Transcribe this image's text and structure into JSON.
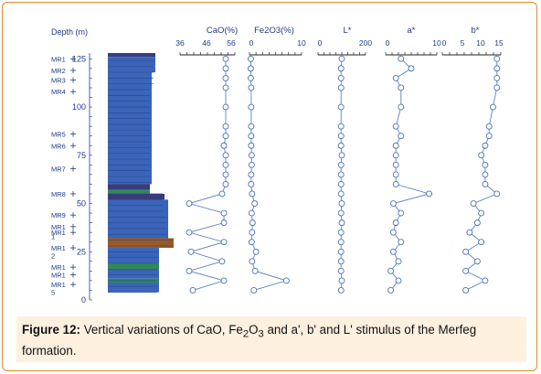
{
  "caption": {
    "label": "Figure 12:",
    "pre": " Vertical variations of CaO, Fe",
    "sub1": "2",
    "mid1": "O",
    "sub2": "3",
    "post": " and a', b' and L' stimulus of the Merfeg formation."
  },
  "column": {
    "depth_label": "Depth (m)",
    "depth_ticks": [
      "125",
      "100",
      "75",
      "50",
      "25",
      "0"
    ],
    "samples": [
      "MR1",
      "MR2",
      "MR3",
      "MR4",
      "MR5",
      "MR6",
      "MR7",
      "MR8",
      "MR9",
      "MR1",
      "MR1",
      "1",
      "MR1",
      "2",
      "MR1",
      "MR1",
      "MR1",
      "5"
    ],
    "colors": {
      "blue": "#3b64b8",
      "brown": "#9c5a1f",
      "green": "#2e8b57",
      "dark": "#3a3a7a"
    }
  },
  "chart_data": [
    {
      "type": "line",
      "title": "CaO(%)",
      "ticks": [
        "36",
        "46",
        "56"
      ],
      "xlim": [
        31,
        61
      ],
      "depth": [
        125,
        120,
        115,
        110,
        100,
        90,
        85,
        80,
        75,
        70,
        65,
        60,
        55,
        50,
        45,
        40,
        35,
        30,
        25,
        20,
        15,
        10,
        5
      ],
      "values": [
        56,
        56,
        56,
        56,
        56,
        56,
        56,
        55,
        56,
        56,
        56,
        56,
        54,
        36,
        55,
        55,
        36,
        55,
        37,
        54,
        36,
        55,
        38
      ],
      "dlim": [
        0,
        128
      ]
    },
    {
      "type": "line",
      "title": "Fe2O3(%)",
      "ticks": [
        "0",
        "10"
      ],
      "xlim": [
        0,
        12
      ],
      "depth": [
        125,
        120,
        115,
        110,
        100,
        90,
        85,
        80,
        75,
        70,
        65,
        60,
        55,
        50,
        45,
        40,
        35,
        30,
        25,
        20,
        15,
        10,
        5
      ],
      "values": [
        0.3,
        0.3,
        0.3,
        0.4,
        0.4,
        0.4,
        0.4,
        0.4,
        0.5,
        0.5,
        0.4,
        0.4,
        0.6,
        1.2,
        0.5,
        0.7,
        0.6,
        0.5,
        1.5,
        0.6,
        1.3,
        8.5,
        1.0
      ],
      "dlim": [
        0,
        128
      ]
    },
    {
      "type": "line",
      "title": "L*",
      "ticks": [
        "0",
        "200"
      ],
      "xlim": [
        0,
        200
      ],
      "depth": [
        125,
        120,
        115,
        110,
        100,
        90,
        85,
        80,
        75,
        70,
        65,
        60,
        55,
        50,
        45,
        40,
        35,
        30,
        25,
        20,
        15,
        10,
        5
      ],
      "values": [
        100,
        97,
        97,
        97,
        97,
        97,
        97,
        97,
        100,
        97,
        97,
        97,
        97,
        100,
        97,
        100,
        97,
        97,
        97,
        97,
        97,
        100,
        97
      ],
      "dlim": [
        0,
        128
      ]
    },
    {
      "type": "line",
      "title": "a*",
      "ticks": [
        "0",
        "10"
      ],
      "xlim": [
        0,
        10
      ],
      "depth": [
        125,
        120,
        115,
        110,
        100,
        90,
        85,
        80,
        75,
        70,
        65,
        60,
        55,
        50,
        45,
        40,
        35,
        30,
        25,
        20,
        15,
        10,
        5
      ],
      "values": [
        3,
        5,
        2,
        3,
        3,
        2,
        3,
        2,
        2,
        2,
        2,
        2,
        8.5,
        1.5,
        3,
        2,
        1.5,
        3,
        1.5,
        2.5,
        1,
        2.5,
        1
      ],
      "dlim": [
        0,
        128
      ]
    },
    {
      "type": "line",
      "title": "b*",
      "ticks": [
        "0",
        "5",
        "10",
        "15"
      ],
      "xlim": [
        0,
        15
      ],
      "depth": [
        125,
        120,
        115,
        110,
        100,
        90,
        85,
        80,
        75,
        70,
        65,
        60,
        55,
        50,
        45,
        40,
        35,
        30,
        25,
        20,
        15,
        10,
        5
      ],
      "values": [
        14,
        14,
        14,
        14,
        13,
        12,
        12,
        11,
        10,
        11,
        11,
        11,
        14,
        8,
        10,
        9,
        7,
        10,
        6,
        9,
        6,
        11,
        6
      ],
      "dlim": [
        0,
        128
      ]
    }
  ]
}
